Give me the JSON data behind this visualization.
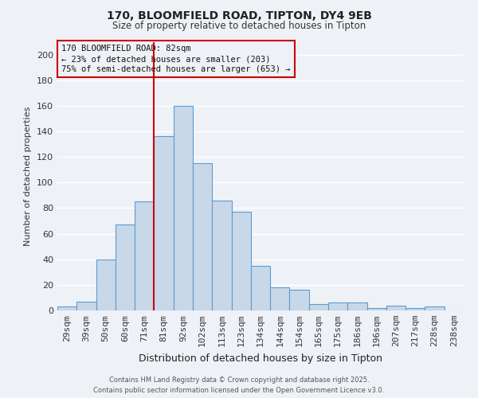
{
  "title": "170, BLOOMFIELD ROAD, TIPTON, DY4 9EB",
  "subtitle": "Size of property relative to detached houses in Tipton",
  "xlabel": "Distribution of detached houses by size in Tipton",
  "ylabel": "Number of detached properties",
  "categories": [
    "29sqm",
    "39sqm",
    "50sqm",
    "60sqm",
    "71sqm",
    "81sqm",
    "92sqm",
    "102sqm",
    "113sqm",
    "123sqm",
    "134sqm",
    "144sqm",
    "154sqm",
    "165sqm",
    "175sqm",
    "186sqm",
    "196sqm",
    "207sqm",
    "217sqm",
    "228sqm",
    "238sqm"
  ],
  "values": [
    3,
    7,
    40,
    67,
    85,
    136,
    160,
    115,
    86,
    77,
    35,
    18,
    16,
    5,
    6,
    6,
    2,
    4,
    2,
    3,
    0
  ],
  "bar_color": "#c8d8e8",
  "bar_edge_color": "#5b9bd5",
  "vline_index": 5,
  "vline_color": "#cc0000",
  "annotation_line1": "170 BLOOMFIELD ROAD: 82sqm",
  "annotation_line2": "← 23% of detached houses are smaller (203)",
  "annotation_line3": "75% of semi-detached houses are larger (653) →",
  "annotation_box_edge_color": "#cc0000",
  "ylim": [
    0,
    210
  ],
  "yticks": [
    0,
    20,
    40,
    60,
    80,
    100,
    120,
    140,
    160,
    180,
    200
  ],
  "background_color": "#eef2f7",
  "grid_color": "#ffffff",
  "footer_line1": "Contains HM Land Registry data © Crown copyright and database right 2025.",
  "footer_line2": "Contains public sector information licensed under the Open Government Licence v3.0."
}
